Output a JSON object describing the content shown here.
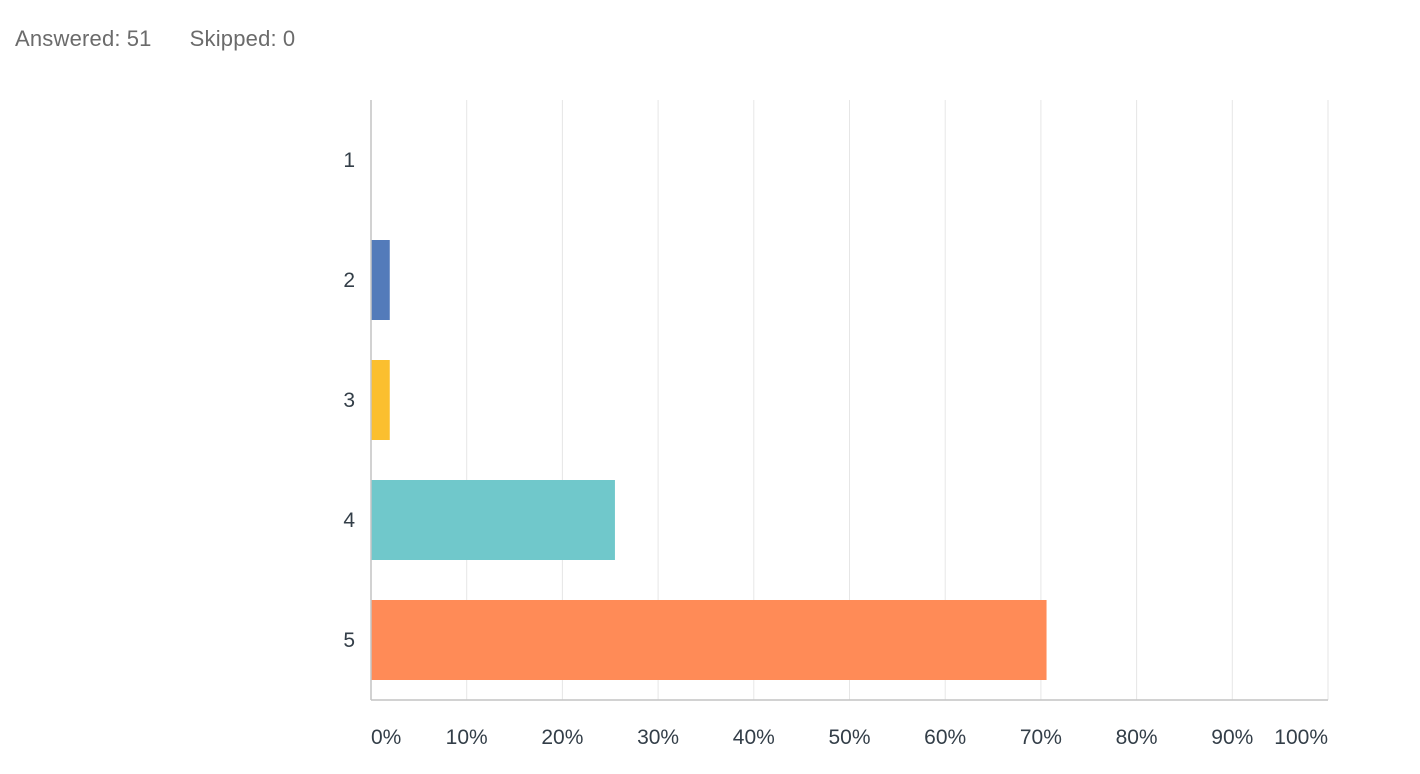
{
  "summary": {
    "answered_label": "Answered:",
    "answered_value": "51",
    "skipped_label": "Skipped:",
    "skipped_value": "0"
  },
  "chart_data": {
    "type": "bar",
    "orientation": "horizontal",
    "categories": [
      "1",
      "2",
      "3",
      "4",
      "5"
    ],
    "values": [
      0,
      1.96,
      1.96,
      25.49,
      70.59
    ],
    "colors": [
      "#6e8fc7",
      "#537bba",
      "#fbbf2f",
      "#70c8cb",
      "#ff8b57"
    ],
    "xlim": [
      0,
      100
    ],
    "xticks": [
      0,
      10,
      20,
      30,
      40,
      50,
      60,
      70,
      80,
      90,
      100
    ],
    "xtick_labels": [
      "0%",
      "10%",
      "20%",
      "30%",
      "40%",
      "50%",
      "60%",
      "70%",
      "80%",
      "90%",
      "100%"
    ],
    "grid": true,
    "legend": "none"
  }
}
